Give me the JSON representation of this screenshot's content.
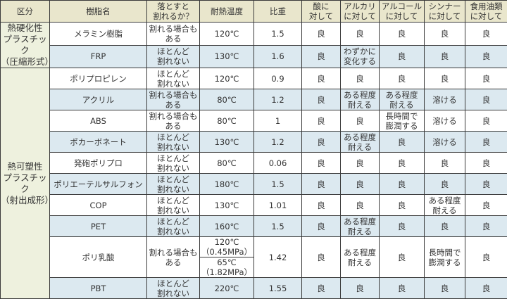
{
  "headers": [
    "区分",
    "樹脂名",
    "落とすと\n割れるか？",
    "耐熱温度",
    "比重",
    "酸に\n対して",
    "アルカリ\nに対して",
    "アルコール\nに対して",
    "シンナー\nに対して",
    "食用油類\nに対して"
  ],
  "categories": [
    {
      "label": "熱硬化性\nプラスチック\n（圧縮形式）",
      "count": 2
    },
    {
      "label": "熱可塑性\nプラスチック\n（射出成形）",
      "count": 10
    }
  ],
  "rows": [
    {
      "name": "メラミン樹脂",
      "drop": "割れる場合も\nある",
      "heat": "120℃",
      "sg": "1.5",
      "acid": "良",
      "alkali": "良",
      "alcohol": "良",
      "thinner": "良",
      "oil": "良"
    },
    {
      "name": "FRP",
      "drop": "ほとんど\n割れない",
      "heat": "130℃",
      "sg": "1.6",
      "acid": "良",
      "alkali": "わずかに\n変化する",
      "alcohol": "良",
      "thinner": "良",
      "oil": "良"
    },
    {
      "name": "ポリプロピレン",
      "drop": "ほとんど\n割れない",
      "heat": "120℃",
      "sg": "0.9",
      "acid": "良",
      "alkali": "良",
      "alcohol": "良",
      "thinner": "良",
      "oil": "良"
    },
    {
      "name": "アクリル",
      "drop": "割れる場合も\nある",
      "heat": "80℃",
      "sg": "1.2",
      "acid": "良",
      "alkali": "ある程度\n耐える",
      "alcohol": "ある程度\n耐える",
      "thinner": "溶ける",
      "oil": "良"
    },
    {
      "name": "ABS",
      "drop": "割れる場合も\nある",
      "heat": "80℃",
      "sg": "1",
      "acid": "良",
      "alkali": "良",
      "alcohol": "長時間で\n膨潤する",
      "thinner": "溶ける",
      "oil": "良"
    },
    {
      "name": "ポカーボネート",
      "drop": "ほとんど\n割れない",
      "heat": "130℃",
      "sg": "1.2",
      "acid": "良",
      "alkali": "ある程度\n耐える",
      "alcohol": "良",
      "thinner": "溶ける",
      "oil": "良"
    },
    {
      "name": "発砲ポリプロ",
      "drop": "ほとんど\n割れない",
      "heat": "80℃",
      "sg": "0.06",
      "acid": "良",
      "alkali": "良",
      "alcohol": "良",
      "thinner": "良",
      "oil": "良"
    },
    {
      "name": "ポリエーテルサルフォン",
      "drop": "ほとんど\n割れない",
      "heat": "180℃",
      "sg": "1.5",
      "acid": "良",
      "alkali": "良",
      "alcohol": "良",
      "thinner": "良",
      "oil": "良"
    },
    {
      "name": "COP",
      "drop": "ほとんど\n割れない",
      "heat": "130℃",
      "sg": "1.01",
      "acid": "良",
      "alkali": "良",
      "alcohol": "良",
      "thinner": "ある程度\n耐える",
      "oil": "良"
    },
    {
      "name": "PET",
      "drop": "ほとんど\n割れない",
      "heat": "160℃",
      "sg": "1.5",
      "acid": "良",
      "alkali": "ある程度\n耐える",
      "alcohol": "良",
      "thinner": "良",
      "oil": "良"
    },
    {
      "name": "ポリ乳酸",
      "drop": "割れる場合も\nある",
      "heat": "120℃\n（0.45MPa）",
      "heat2": "65℃\n（1.82MPa）",
      "sg": "1.42",
      "acid": "良",
      "alkali": "ある程度\n耐える",
      "alcohol": "良",
      "thinner": "長時間で\n膨潤する",
      "oil": "良"
    },
    {
      "name": "PBT",
      "drop": "ほとんど\n割れない",
      "heat": "220℃",
      "sg": "1.55",
      "acid": "良",
      "alkali": "良",
      "alcohol": "良",
      "thinner": "良",
      "oil": "良"
    }
  ]
}
